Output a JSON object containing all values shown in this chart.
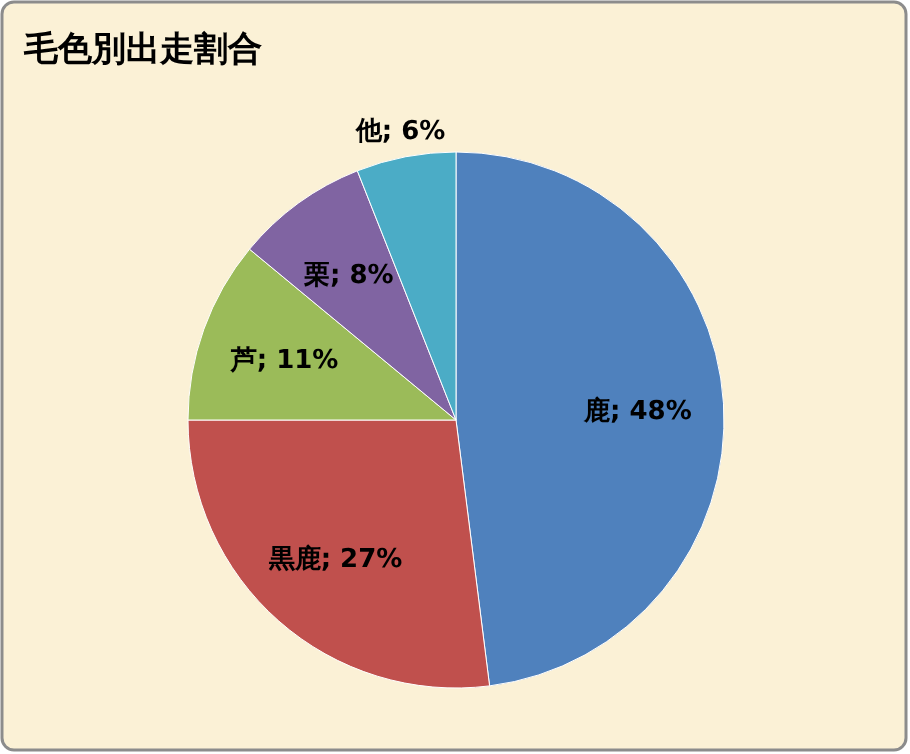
{
  "chart_data": {
    "type": "pie",
    "title": "毛色別出走割合",
    "categories": [
      "鹿",
      "黒鹿",
      "芦",
      "栗",
      "他"
    ],
    "values": [
      48,
      27,
      11,
      8,
      6
    ],
    "value_labels": [
      "48%",
      "27%",
      "11%",
      "8%",
      "6%"
    ],
    "colors": [
      "#4f81bd",
      "#c0504d",
      "#9bbb59",
      "#8064a2",
      "#4bacc6"
    ]
  }
}
